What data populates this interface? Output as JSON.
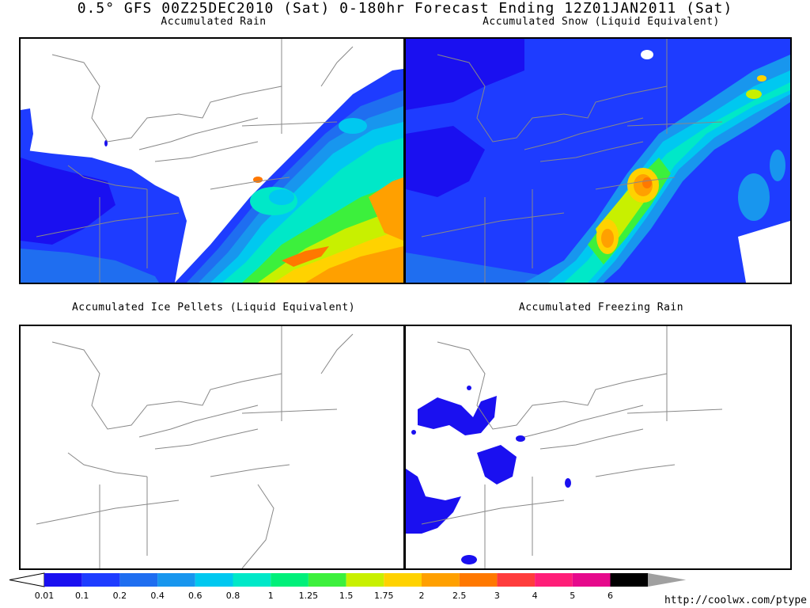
{
  "title": "0.5° GFS 00Z25DEC2010 (Sat) 0-180hr Forecast Ending 12Z01JAN2011 (Sat)",
  "panels": {
    "rain": {
      "title": "Accumulated Rain"
    },
    "snow": {
      "title": "Accumulated Snow (Liquid Equivalent)"
    },
    "ice": {
      "title": "Accumulated Ice Pellets (Liquid Equivalent)"
    },
    "freezing": {
      "title": "Accumulated Freezing Rain"
    }
  },
  "colorbar": {
    "labels": [
      "0.01",
      "0.1",
      "0.2",
      "0.4",
      "0.6",
      "0.8",
      "1",
      "1.25",
      "1.5",
      "1.75",
      "2",
      "2.5",
      "3",
      "4",
      "5",
      "6"
    ],
    "colors": [
      "#1a10f0",
      "#1e3cff",
      "#1f6ef0",
      "#1896ee",
      "#00c8f0",
      "#00e8c8",
      "#00f07a",
      "#3cf03c",
      "#c8f000",
      "#ffd200",
      "#ffa000",
      "#ff7800",
      "#ff3c3c",
      "#ff1e78",
      "#e60a8c",
      "#000000",
      "#a0a0a0"
    ]
  },
  "url": "http://coolwx.com/ptype"
}
